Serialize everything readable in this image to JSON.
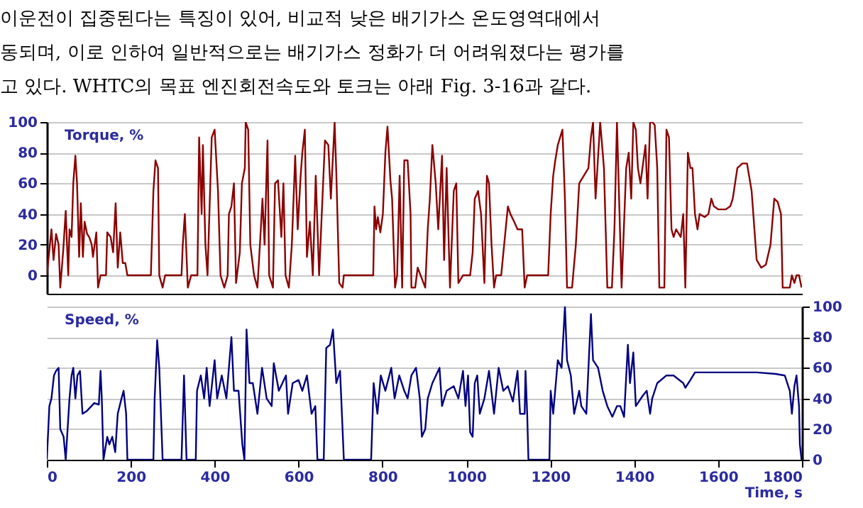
{
  "chart_data": [
    {
      "type": "line",
      "annotations": [
        "이운전이 집중된다는 특징이 있어, 비교적 낮은 배기가스 온도영역대에서",
        "동되며, 이로 인하여 일반적으로는 배기가스 정화가 더 어려워졌다는 평가를",
        "고 있다. WHTC의 목표 엔진회전속도와 토크는 아래 Fig. 3-16과 같다."
      ],
      "ylabel": "Torque, %",
      "xlim": [
        0,
        1800
      ],
      "xticks": [
        0,
        200,
        400,
        600,
        800,
        1000,
        1200,
        1400,
        1600,
        1800
      ],
      "ylim": [
        -12,
        100
      ],
      "yticks": [
        0,
        20,
        40,
        60,
        80,
        100
      ],
      "grid": "y",
      "tick_labels": "y",
      "line_style": "solid",
      "series": [
        {
          "color": "#8b0000",
          "x": [
            0,
            11,
            16,
            22,
            28,
            32,
            39,
            45,
            51,
            54,
            59,
            63,
            68,
            72,
            77,
            81,
            86,
            90,
            96,
            101,
            107,
            110,
            118,
            122,
            128,
            141,
            144,
            152,
            158,
            164,
            169,
            175,
            181,
            187,
            192,
            248,
            254,
            259,
            265,
            268,
            276,
            282,
            321,
            324,
            329,
            336,
            344,
            359,
            363,
            369,
            372,
            378,
            383,
            393,
            400,
            408,
            414,
            423,
            431,
            434,
            440,
            446,
            451,
            460,
            465,
            472,
            474,
            480,
            485,
            494,
            502,
            510,
            514,
            519,
            526,
            530,
            539,
            544,
            551,
            559,
            564,
            569,
            577,
            584,
            592,
            598,
            605,
            609,
            615,
            620,
            627,
            634,
            641,
            649,
            663,
            671,
            677,
            686,
            690,
            697,
            705,
            708,
            778,
            781,
            785,
            789,
            795,
            801,
            807,
            812,
            819,
            823,
            830,
            835,
            841,
            847,
            852,
            860,
            867,
            869,
            878,
            884,
            891,
            902,
            908,
            913,
            919,
            927,
            933,
            942,
            947,
            953,
            961,
            970,
            976,
            981,
            992,
            1009,
            1015,
            1020,
            1028,
            1035,
            1043,
            1049,
            1054,
            1060,
            1066,
            1071,
            1083,
            1099,
            1105,
            1114,
            1122,
            1133,
            1139,
            1145,
            1195,
            1201,
            1207,
            1212,
            1218,
            1229,
            1235,
            1240,
            1252,
            1261,
            1269,
            1291,
            1297,
            1302,
            1308,
            1319,
            1328,
            1336,
            1347,
            1353,
            1359,
            1370,
            1381,
            1387,
            1393,
            1398,
            1404,
            1409,
            1415,
            1427,
            1432,
            1438,
            1443,
            1449,
            1455,
            1460,
            1472,
            1477,
            1483,
            1489,
            1494,
            1500,
            1511,
            1517,
            1522,
            1528,
            1534,
            1539,
            1545,
            1551,
            1556,
            1568,
            1577,
            1584,
            1590,
            1601,
            1618,
            1629,
            1635,
            1646,
            1658,
            1669,
            1680,
            1692,
            1703,
            1714,
            1725,
            1734,
            1742,
            1750,
            1754,
            1771,
            1776,
            1782,
            1787,
            1793,
            1799
          ],
          "values": [
            0,
            30,
            10,
            27,
            20,
            -8,
            16,
            42,
            0,
            30,
            25,
            60,
            78,
            60,
            12,
            47,
            12,
            35,
            27,
            25,
            20,
            12,
            28,
            -8,
            0,
            0,
            28,
            25,
            15,
            47,
            5,
            28,
            8,
            8,
            0,
            0,
            55,
            75,
            70,
            0,
            -8,
            0,
            0,
            20,
            40,
            -8,
            0,
            0,
            90,
            40,
            85,
            20,
            0,
            90,
            95,
            55,
            0,
            -8,
            0,
            40,
            45,
            60,
            -5,
            15,
            60,
            70,
            100,
            95,
            20,
            0,
            -8,
            30,
            50,
            20,
            88,
            0,
            -8,
            60,
            62,
            25,
            60,
            0,
            -8,
            20,
            78,
            30,
            65,
            80,
            95,
            12,
            35,
            0,
            65,
            0,
            88,
            85,
            50,
            100,
            67,
            -5,
            -8,
            0,
            0,
            45,
            30,
            38,
            28,
            40,
            80,
            97,
            62,
            50,
            -8,
            0,
            65,
            -8,
            75,
            75,
            40,
            -8,
            -8,
            5,
            0,
            -8,
            30,
            50,
            85,
            60,
            30,
            78,
            10,
            70,
            -8,
            55,
            60,
            -5,
            0,
            0,
            15,
            50,
            55,
            40,
            -5,
            65,
            60,
            20,
            -8,
            0,
            0,
            45,
            40,
            35,
            30,
            30,
            -8,
            0,
            0,
            40,
            65,
            75,
            85,
            95,
            50,
            -8,
            -8,
            20,
            60,
            70,
            90,
            100,
            50,
            100,
            70,
            -8,
            -8,
            30,
            100,
            -8,
            70,
            80,
            50,
            100,
            95,
            70,
            60,
            85,
            50,
            100,
            100,
            98,
            70,
            -8,
            -8,
            95,
            90,
            30,
            25,
            30,
            25,
            40,
            -8,
            80,
            70,
            70,
            40,
            30,
            40,
            38,
            40,
            50,
            45,
            43,
            43,
            45,
            50,
            70,
            73,
            73,
            55,
            10,
            5,
            7,
            20,
            50,
            48,
            40,
            -8,
            -8,
            0,
            -5,
            0,
            0,
            -8
          ]
        }
      ]
    },
    {
      "type": "line",
      "y2label": "Speed, %",
      "xlabel": "Time, s",
      "xlim": [
        0,
        1800
      ],
      "xticks": [
        0,
        200,
        400,
        600,
        800,
        1000,
        1200,
        1400,
        1600,
        1800
      ],
      "y2lim": [
        0,
        100
      ],
      "y2ticks": [
        0,
        20,
        40,
        60,
        80,
        100
      ],
      "grid": "y",
      "line_style": "solid",
      "series": [
        {
          "axis": "y2",
          "color": "#000080",
          "x": [
            0,
            6,
            11,
            17,
            22,
            28,
            32,
            40,
            45,
            54,
            59,
            63,
            68,
            73,
            79,
            85,
            96,
            113,
            124,
            128,
            131,
            135,
            144,
            149,
            156,
            163,
            169,
            178,
            183,
            189,
            192,
            254,
            257,
            263,
            268,
            276,
            321,
            327,
            333,
            355,
            358,
            367,
            375,
            381,
            388,
            400,
            406,
            417,
            428,
            440,
            446,
            457,
            466,
            471,
            476,
            483,
            491,
            502,
            513,
            524,
            536,
            541,
            553,
            570,
            575,
            586,
            600,
            609,
            620,
            631,
            640,
            645,
            660,
            666,
            675,
            682,
            690,
            699,
            708,
            773,
            779,
            788,
            796,
            807,
            821,
            829,
            840,
            852,
            860,
            869,
            880,
            889,
            894,
            902,
            908,
            919,
            936,
            942,
            953,
            970,
            981,
            992,
            998,
            1004,
            1009,
            1015,
            1020,
            1026,
            1032,
            1043,
            1054,
            1066,
            1077,
            1088,
            1099,
            1111,
            1122,
            1128,
            1139,
            1141,
            1145,
            1148,
            1198,
            1201,
            1207,
            1218,
            1227,
            1235,
            1240,
            1249,
            1257,
            1269,
            1274,
            1286,
            1297,
            1302,
            1314,
            1325,
            1336,
            1348,
            1359,
            1367,
            1376,
            1385,
            1390,
            1398,
            1404,
            1421,
            1430,
            1438,
            1443,
            1455,
            1477,
            1494,
            1517,
            1522,
            1534,
            1545,
            1601,
            1692,
            1737,
            1759,
            1771,
            1776,
            1782,
            1787,
            1793,
            1795,
            1799
          ],
          "values": [
            0,
            35,
            40,
            55,
            58,
            60,
            20,
            15,
            0,
            40,
            55,
            60,
            40,
            55,
            58,
            30,
            32,
            37,
            36,
            58,
            40,
            0,
            15,
            10,
            15,
            5,
            30,
            40,
            45,
            30,
            0,
            0,
            40,
            78,
            60,
            0,
            0,
            55,
            0,
            0,
            45,
            55,
            40,
            60,
            35,
            65,
            40,
            55,
            40,
            80,
            45,
            45,
            10,
            0,
            85,
            50,
            50,
            30,
            60,
            40,
            35,
            63,
            45,
            55,
            30,
            50,
            52,
            45,
            55,
            30,
            35,
            0,
            0,
            73,
            75,
            85,
            50,
            58,
            0,
            0,
            50,
            30,
            55,
            45,
            60,
            40,
            55,
            45,
            40,
            55,
            60,
            40,
            15,
            20,
            40,
            50,
            60,
            35,
            45,
            48,
            40,
            58,
            35,
            55,
            18,
            15,
            50,
            55,
            30,
            40,
            58,
            30,
            60,
            45,
            48,
            38,
            58,
            30,
            30,
            58,
            30,
            0,
            0,
            45,
            30,
            65,
            60,
            100,
            65,
            55,
            30,
            45,
            35,
            30,
            95,
            65,
            60,
            45,
            35,
            28,
            35,
            35,
            28,
            75,
            50,
            70,
            35,
            42,
            45,
            30,
            40,
            50,
            55,
            55,
            50,
            47,
            52,
            57,
            57,
            57,
            56,
            55,
            45,
            30,
            48,
            55,
            35,
            10,
            0
          ]
        }
      ]
    }
  ]
}
